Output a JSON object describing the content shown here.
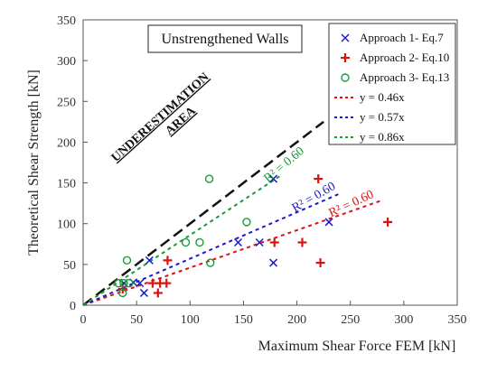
{
  "chart_data": {
    "type": "scatter",
    "title": "Unstrengthened Walls",
    "xlabel": "Maximum Shear Force FEM [kN]",
    "ylabel": "Theoretical Shear Strength [kN]",
    "xlim": [
      0,
      350
    ],
    "ylim": [
      0,
      350
    ],
    "xticks": [
      0,
      50,
      100,
      150,
      200,
      250,
      300,
      350
    ],
    "yticks": [
      0,
      50,
      100,
      150,
      200,
      250,
      300,
      350
    ],
    "grid": false,
    "legend_position": "top-right",
    "series": [
      {
        "name": "Approach 1- Eq.7",
        "marker": "x",
        "color": "#1a1acc",
        "points": [
          [
            38,
            27
          ],
          [
            47,
            28
          ],
          [
            53,
            27
          ],
          [
            57,
            15
          ],
          [
            62,
            55
          ],
          [
            145,
            77
          ],
          [
            165,
            77
          ],
          [
            178,
            52
          ],
          [
            178,
            155
          ],
          [
            230,
            102
          ]
        ]
      },
      {
        "name": "Approach 2- Eq.10",
        "marker": "+",
        "color": "#dd1111",
        "points": [
          [
            37,
            20
          ],
          [
            65,
            27
          ],
          [
            70,
            15
          ],
          [
            72,
            27
          ],
          [
            78,
            27
          ],
          [
            79,
            55
          ],
          [
            179,
            77
          ],
          [
            205,
            77
          ],
          [
            220,
            155
          ],
          [
            222,
            52
          ],
          [
            285,
            102
          ]
        ]
      },
      {
        "name": "Approach 3- Eq.13",
        "marker": "o",
        "color": "#1a9a3a",
        "points": [
          [
            33,
            27
          ],
          [
            37,
            15
          ],
          [
            38,
            27
          ],
          [
            41,
            55
          ],
          [
            43,
            27
          ],
          [
            96,
            77
          ],
          [
            109,
            77
          ],
          [
            118,
            155
          ],
          [
            119,
            52
          ],
          [
            153,
            102
          ]
        ]
      }
    ],
    "trendlines": [
      {
        "name": "y = 0.46x",
        "slope": 0.46,
        "x_range": [
          0,
          280
        ],
        "color": "#dd1111",
        "r2_label": "R² = 0.60"
      },
      {
        "name": "y = 0.57x",
        "slope": 0.57,
        "x_range": [
          0,
          240
        ],
        "color": "#1a1acc",
        "r2_label": "R² = 0.60"
      },
      {
        "name": "y = 0.86x",
        "slope": 0.86,
        "x_range": [
          0,
          185
        ],
        "color": "#1a9a3a",
        "r2_label": "R² = 0.60"
      }
    ],
    "reference_line": {
      "slope": 1.0,
      "x_range": [
        0,
        225
      ],
      "color": "#111111",
      "style": "dashed"
    },
    "annotation": [
      "UNDERESTIMATION",
      "AREA"
    ]
  }
}
